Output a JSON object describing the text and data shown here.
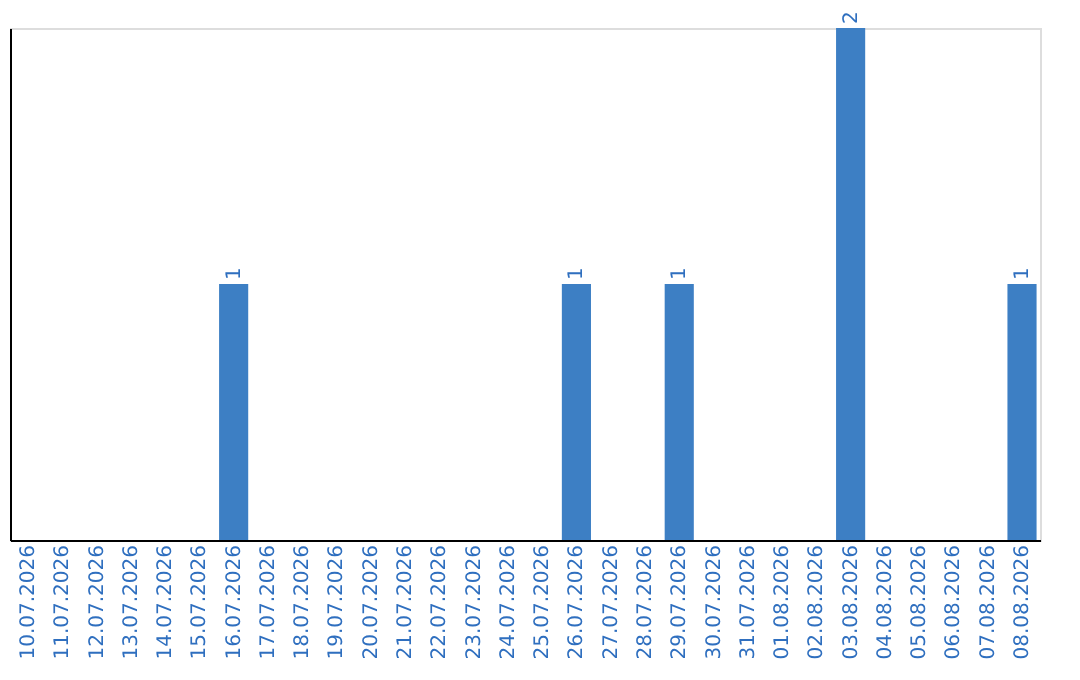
{
  "chart_data": {
    "type": "bar",
    "categories": [
      "10.07.2026",
      "11.07.2026",
      "12.07.2026",
      "13.07.2026",
      "14.07.2026",
      "15.07.2026",
      "16.07.2026",
      "17.07.2026",
      "18.07.2026",
      "19.07.2026",
      "20.07.2026",
      "21.07.2026",
      "22.07.2026",
      "23.07.2026",
      "24.07.2026",
      "25.07.2026",
      "26.07.2026",
      "27.07.2026",
      "28.07.2026",
      "29.07.2026",
      "30.07.2026",
      "31.07.2026",
      "01.08.2026",
      "02.08.2026",
      "03.08.2026",
      "04.08.2026",
      "05.08.2026",
      "06.08.2026",
      "07.08.2026",
      "08.08.2026"
    ],
    "values": [
      0,
      0,
      0,
      0,
      0,
      0,
      1,
      0,
      0,
      0,
      0,
      0,
      0,
      0,
      0,
      0,
      1,
      0,
      0,
      1,
      0,
      0,
      0,
      0,
      2,
      0,
      0,
      0,
      0,
      1
    ],
    "value_labels": [
      null,
      null,
      null,
      null,
      null,
      null,
      "1",
      null,
      null,
      null,
      null,
      null,
      null,
      null,
      null,
      null,
      "1",
      null,
      null,
      "1",
      null,
      null,
      null,
      null,
      "2",
      null,
      null,
      null,
      null,
      "1"
    ],
    "color": "#3d7fc4",
    "ylim": [
      0,
      2
    ],
    "tick_labels": "x"
  }
}
